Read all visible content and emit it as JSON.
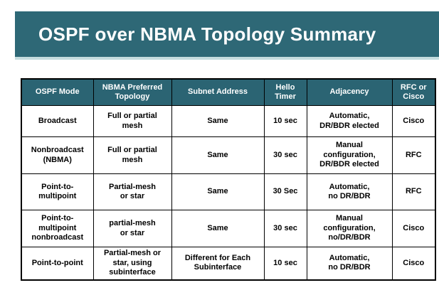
{
  "title": "OSPF over NBMA Topology Summary",
  "colors": {
    "banner_teal": "#2e6876",
    "banner_underline": "#c5dcde",
    "header_teal": "#2b6473",
    "table_border": "#000000",
    "title_text": "#ffffff"
  },
  "table": {
    "headers": [
      "OSPF Mode",
      "NBMA Preferred\nTopology",
      "Subnet Address",
      "Hello\nTimer",
      "Adjacency",
      "RFC or\nCisco"
    ],
    "rows": [
      [
        "Broadcast",
        "Full or partial\nmesh",
        "Same",
        "10 sec",
        "Automatic,\nDR/BDR elected",
        "Cisco"
      ],
      [
        "Nonbroadcast\n(NBMA)",
        "Full or partial\nmesh",
        "Same",
        "30 sec",
        "Manual\nconfiguration,\nDR/BDR elected",
        "RFC"
      ],
      [
        "Point-to-\nmultipoint",
        "Partial-mesh\nor star",
        "Same",
        "30 Sec",
        "Automatic,\nno DR/BDR",
        "RFC"
      ],
      [
        "Point-to-\nmultipoint\nnonbroadcast",
        "partial-mesh\nor star",
        "Same",
        "30 sec",
        "Manual\nconfiguration,\nno/DR/BDR",
        "Cisco"
      ],
      [
        "Point-to-point",
        "Partial-mesh or\nstar, using\nsubinterface",
        "Different for Each\nSubinterface",
        "10 sec",
        "Automatic,\nno DR/BDR",
        "Cisco"
      ]
    ]
  }
}
